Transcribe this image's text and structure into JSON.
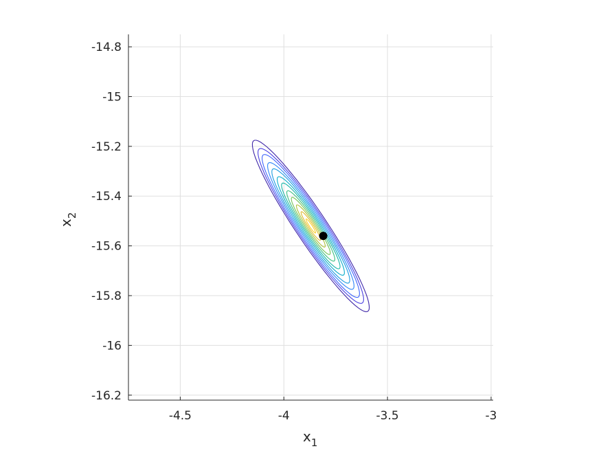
{
  "chart_data": {
    "type": "contour",
    "xlabel": {
      "base": "x",
      "sub": "1"
    },
    "ylabel": {
      "base": "x",
      "sub": "2"
    },
    "xlim": [
      -4.75,
      -2.99
    ],
    "ylim": [
      -16.22,
      -14.75
    ],
    "xticks": [
      -4.5,
      -4,
      -3.5,
      -3
    ],
    "xtick_labels": [
      "-4.5",
      "-4",
      "-3.5",
      "-3"
    ],
    "yticks": [
      -14.8,
      -15,
      -15.2,
      -15.4,
      -15.6,
      -15.8,
      -16,
      -16.2
    ],
    "ytick_labels": [
      "-14.8",
      "-15",
      "-15.2",
      "-15.4",
      "-15.6",
      "-15.8",
      "-16",
      "-16.2"
    ],
    "grid": true,
    "box": "left-bottom axes",
    "contours": {
      "center": [
        -3.87,
        -15.52
      ],
      "semi_major": 0.44,
      "semi_minor": 0.07,
      "tilt_deg_data": -51,
      "levels": 12,
      "colormap": [
        "#3e26a8",
        "#4a3fe1",
        "#3f64fb",
        "#2c84f7",
        "#1a9be0",
        "#0aaccb",
        "#18b6a8",
        "#3dbf82",
        "#73c358",
        "#aec23a",
        "#e0ba2e",
        "#fcd02e",
        "#f9fb15"
      ]
    },
    "marker": {
      "x": -3.81,
      "y": -15.56,
      "color": "#000000",
      "shape": "filled-circle"
    }
  }
}
